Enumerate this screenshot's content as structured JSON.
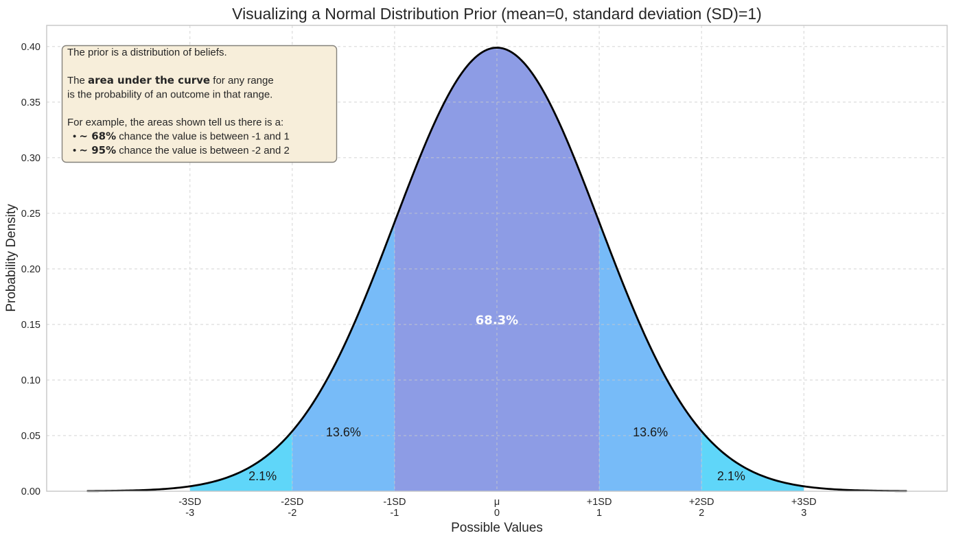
{
  "chart_data": {
    "type": "area",
    "distribution": "normal",
    "mean": 0,
    "sd": 1,
    "title": "Visualizing a Normal Distribution Prior (mean=0, standard deviation (SD)=1)",
    "xlabel": "Possible Values",
    "ylabel": "Probability Density",
    "xlim": [
      -4.4,
      4.4
    ],
    "ylim": [
      0,
      0.419
    ],
    "curve_x_range": [
      -4,
      4
    ],
    "curve_color": "#000000",
    "grid": true,
    "x_ticks": [
      {
        "value": -3,
        "line1": "-3SD",
        "line2": "-3"
      },
      {
        "value": -2,
        "line1": "-2SD",
        "line2": "-2"
      },
      {
        "value": -1,
        "line1": "-1SD",
        "line2": "-1"
      },
      {
        "value": 0,
        "line1": "μ",
        "line2": "0"
      },
      {
        "value": 1,
        "line1": "+1SD",
        "line2": "1"
      },
      {
        "value": 2,
        "line1": "+2SD",
        "line2": "2"
      },
      {
        "value": 3,
        "line1": "+3SD",
        "line2": "3"
      }
    ],
    "y_ticks": [
      {
        "value": 0.0,
        "label": "0.00"
      },
      {
        "value": 0.05,
        "label": "0.05"
      },
      {
        "value": 0.1,
        "label": "0.10"
      },
      {
        "value": 0.15,
        "label": "0.15"
      },
      {
        "value": 0.2,
        "label": "0.20"
      },
      {
        "value": 0.25,
        "label": "0.25"
      },
      {
        "value": 0.3,
        "label": "0.30"
      },
      {
        "value": 0.35,
        "label": "0.35"
      },
      {
        "value": 0.4,
        "label": "0.40"
      }
    ],
    "regions": [
      {
        "from": -3,
        "to": -2,
        "color": "#5fd6f9",
        "label": "2.1%",
        "label_x": -2.29,
        "label_y": 0.0135,
        "label_color": "#1a1a1a",
        "bold": false
      },
      {
        "from": -2,
        "to": -1,
        "color": "#77bbf8",
        "label": "13.6%",
        "label_x": -1.5,
        "label_y": 0.053,
        "label_color": "#1a1a1a",
        "bold": false
      },
      {
        "from": -1,
        "to": 1,
        "color": "#8d9ce5",
        "label": "68.3%",
        "label_x": 0.0,
        "label_y": 0.154,
        "label_color": "#ffffff",
        "bold": true
      },
      {
        "from": 1,
        "to": 2,
        "color": "#77bbf8",
        "label": "13.6%",
        "label_x": 1.5,
        "label_y": 0.053,
        "label_color": "#1a1a1a",
        "bold": false
      },
      {
        "from": 2,
        "to": 3,
        "color": "#5fd6f9",
        "label": "2.1%",
        "label_x": 2.29,
        "label_y": 0.0135,
        "label_color": "#1a1a1a",
        "bold": false
      }
    ]
  },
  "annotation_box": {
    "bg_color": "#f7eeda",
    "border_color": "#84817b",
    "text_color": "#262626",
    "lines": [
      {
        "indent": 0,
        "segments": [
          {
            "t": "The prior is a distribution of beliefs.",
            "b": false
          }
        ]
      },
      {
        "indent": 0,
        "segments": [
          {
            "t": "The ",
            "b": false
          },
          {
            "t": "area under the curve",
            "b": true
          },
          {
            "t": " for any range",
            "b": false
          }
        ]
      },
      {
        "indent": 0,
        "segments": [
          {
            "t": "is the probability of an outcome in that range.",
            "b": false
          }
        ]
      },
      {
        "indent": 0,
        "segments": [
          {
            "t": "For example, the areas shown tell us there is a:",
            "b": false
          }
        ]
      },
      {
        "indent": 8,
        "segments": [
          {
            "t": "•  ",
            "b": false
          },
          {
            "t": "~ 68%",
            "b": true
          },
          {
            "t": " chance the value is between -1 and 1",
            "b": false
          }
        ]
      },
      {
        "indent": 8,
        "segments": [
          {
            "t": "•  ",
            "b": false
          },
          {
            "t": "~ 95%",
            "b": true
          },
          {
            "t": " chance the value is between -2 and 2",
            "b": false
          }
        ]
      }
    ]
  },
  "palette": {
    "grid_color": "#cbcbcb",
    "spine_color": "#c6c6c6",
    "title_color": "#262626",
    "tick_color": "#262626",
    "axis_label_color": "#262626"
  }
}
